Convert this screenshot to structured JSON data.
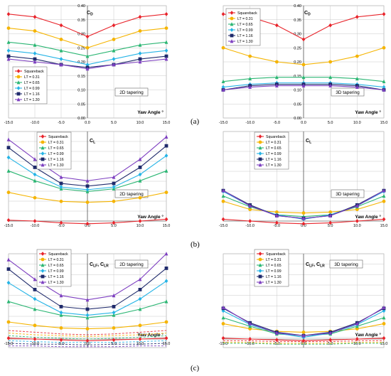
{
  "row_labels": [
    "(a)",
    "(b)",
    "(c)"
  ],
  "legend_labels": [
    "Squareback",
    "LT = 0.31",
    "LT = 0.65",
    "LT = 0.99",
    "LT = 1.16",
    "LT = 1.30"
  ],
  "colors": [
    "#e8242b",
    "#f5b400",
    "#2bb673",
    "#26b4e6",
    "#1f2a6b",
    "#7d3fc0"
  ],
  "chart_data": [
    {
      "type": "line",
      "id": "a-2d",
      "tag": "2D tapering",
      "coef_label": "C_D",
      "xlabel": "Yaw Angle °",
      "x": [
        -15,
        -10,
        -5,
        0,
        5,
        10,
        15
      ],
      "xticks": [
        "-15.0",
        "-10.0",
        "-5.0",
        "0.0",
        "5.0",
        "10.0",
        "15.0"
      ],
      "ylim": [
        0,
        0.4
      ],
      "yticks": [
        "0.00",
        "0.05",
        "0.10",
        "0.15",
        "0.20",
        "0.25",
        "0.30",
        "0.35",
        "0.40"
      ],
      "grid": true,
      "legend": "bottom-left",
      "series": [
        {
          "name": "Squareback",
          "values": [
            0.37,
            0.36,
            0.33,
            0.29,
            0.33,
            0.36,
            0.37
          ]
        },
        {
          "name": "LT = 0.31",
          "values": [
            0.32,
            0.31,
            0.28,
            0.25,
            0.28,
            0.31,
            0.32
          ]
        },
        {
          "name": "LT = 0.65",
          "values": [
            0.27,
            0.26,
            0.24,
            0.22,
            0.24,
            0.26,
            0.27
          ]
        },
        {
          "name": "LT = 0.99",
          "values": [
            0.24,
            0.23,
            0.21,
            0.19,
            0.21,
            0.23,
            0.24
          ]
        },
        {
          "name": "LT = 1.16",
          "values": [
            0.22,
            0.21,
            0.19,
            0.18,
            0.19,
            0.21,
            0.22
          ]
        },
        {
          "name": "LT = 1.30",
          "values": [
            0.21,
            0.2,
            0.19,
            0.175,
            0.19,
            0.2,
            0.21
          ]
        }
      ]
    },
    {
      "type": "line",
      "id": "a-3d",
      "tag": "3D tapering",
      "coef_label": "C_D",
      "xlabel": "Yaw Angle °",
      "x": [
        -15,
        -10,
        -5,
        0,
        5,
        10,
        15
      ],
      "xticks": [
        "-15.0",
        "-10.0",
        "-5.0",
        "0.0",
        "5.0",
        "10.0",
        "15.0"
      ],
      "ylim": [
        0,
        0.4
      ],
      "yticks": [
        "0.00",
        "0.05",
        "0.10",
        "0.15",
        "0.20",
        "0.25",
        "0.30",
        "0.35",
        "0.40"
      ],
      "grid": true,
      "legend": "top-left",
      "series": [
        {
          "name": "Squareback",
          "values": [
            0.37,
            0.36,
            0.33,
            0.28,
            0.33,
            0.36,
            0.37
          ]
        },
        {
          "name": "LT = 0.31",
          "values": [
            0.25,
            0.22,
            0.2,
            0.19,
            0.2,
            0.22,
            0.25
          ]
        },
        {
          "name": "LT = 0.65",
          "values": [
            0.13,
            0.14,
            0.145,
            0.145,
            0.145,
            0.14,
            0.13
          ]
        },
        {
          "name": "LT = 0.99",
          "values": [
            0.11,
            0.12,
            0.125,
            0.125,
            0.125,
            0.12,
            0.11
          ]
        },
        {
          "name": "LT = 1.16",
          "values": [
            0.1,
            0.115,
            0.12,
            0.12,
            0.12,
            0.115,
            0.1
          ]
        },
        {
          "name": "LT = 1.30",
          "values": [
            0.1,
            0.11,
            0.115,
            0.115,
            0.115,
            0.11,
            0.1
          ]
        }
      ]
    },
    {
      "type": "line",
      "id": "b-2d",
      "tag": "2D tapering",
      "coef_label": "C_L",
      "xlabel": "Yaw Angle °",
      "x": [
        -15,
        -10,
        -5,
        0,
        5,
        10,
        15
      ],
      "xticks": [
        "-15.0",
        "-10.0",
        "-5.0",
        "0.0",
        "5.0",
        "10.0",
        "15.0"
      ],
      "ylim": [
        0,
        1
      ],
      "yticks": [],
      "grid": true,
      "legend": "top-left",
      "series": [
        {
          "name": "Squareback",
          "values": [
            0.01,
            0.0,
            -0.02,
            -0.03,
            -0.02,
            0.0,
            0.02
          ]
        },
        {
          "name": "LT = 0.31",
          "values": [
            0.32,
            0.26,
            0.22,
            0.21,
            0.22,
            0.26,
            0.32
          ]
        },
        {
          "name": "LT = 0.65",
          "values": [
            0.56,
            0.45,
            0.36,
            0.33,
            0.36,
            0.45,
            0.56
          ]
        },
        {
          "name": "LT = 0.99",
          "values": [
            0.71,
            0.52,
            0.38,
            0.35,
            0.38,
            0.52,
            0.73
          ]
        },
        {
          "name": "LT = 1.16",
          "values": [
            0.82,
            0.6,
            0.42,
            0.39,
            0.42,
            0.6,
            0.84
          ]
        },
        {
          "name": "LT = 1.30",
          "values": [
            0.91,
            0.69,
            0.49,
            0.45,
            0.49,
            0.69,
            0.94
          ]
        }
      ]
    },
    {
      "type": "line",
      "id": "b-3d",
      "tag": "3D tapering",
      "coef_label": "C_L",
      "xlabel": "Yaw Angle °",
      "x": [
        -15,
        -10,
        -5,
        0,
        5,
        10,
        15
      ],
      "xticks": [
        "-15.0",
        "-10.0",
        "-5.0",
        "0.0",
        "5.0",
        "10.0",
        "15.0"
      ],
      "ylim": [
        0,
        1
      ],
      "yticks": [],
      "grid": true,
      "legend": "top-center",
      "series": [
        {
          "name": "Squareback",
          "values": [
            0.02,
            0.0,
            -0.02,
            -0.03,
            -0.02,
            0.0,
            0.02
          ]
        },
        {
          "name": "LT = 0.31",
          "values": [
            0.22,
            0.13,
            0.1,
            0.09,
            0.1,
            0.13,
            0.22
          ]
        },
        {
          "name": "LT = 0.65",
          "values": [
            0.28,
            0.16,
            0.07,
            0.05,
            0.07,
            0.16,
            0.28
          ]
        },
        {
          "name": "LT = 0.99",
          "values": [
            0.33,
            0.17,
            0.07,
            0.02,
            0.07,
            0.17,
            0.33
          ]
        },
        {
          "name": "LT = 1.16",
          "values": [
            0.34,
            0.18,
            0.06,
            0.03,
            0.06,
            0.18,
            0.34
          ]
        },
        {
          "name": "LT = 1.30",
          "values": [
            0.34,
            0.17,
            0.06,
            0.03,
            0.06,
            0.17,
            0.34
          ]
        }
      ]
    },
    {
      "type": "line",
      "id": "c-2d",
      "tag": "2D tapering",
      "coef_label": "C_LF, C_LR",
      "xlabel": "Yaw Angle °",
      "x": [
        -15,
        -10,
        -5,
        0,
        5,
        10,
        15
      ],
      "xticks": [
        "-15.0",
        "-10.0",
        "-5.0",
        "0.0",
        "5.0",
        "10.0",
        "15.0"
      ],
      "ylim": [
        -0.1,
        1
      ],
      "yticks": [],
      "grid": true,
      "legend": "top-left",
      "series": [
        {
          "name": "Squareback",
          "values": [
            0.01,
            0.0,
            -0.01,
            -0.02,
            -0.01,
            0.0,
            0.01
          ]
        },
        {
          "name": "LT = 0.31",
          "values": [
            0.2,
            0.16,
            0.13,
            0.12,
            0.13,
            0.16,
            0.2
          ]
        },
        {
          "name": "LT = 0.65",
          "values": [
            0.44,
            0.35,
            0.28,
            0.25,
            0.28,
            0.35,
            0.44
          ]
        },
        {
          "name": "LT = 0.99",
          "values": [
            0.66,
            0.47,
            0.31,
            0.28,
            0.31,
            0.47,
            0.68
          ]
        },
        {
          "name": "LT = 1.16",
          "values": [
            0.82,
            0.58,
            0.38,
            0.35,
            0.38,
            0.58,
            0.83
          ]
        },
        {
          "name": "LT = 1.30",
          "values": [
            0.93,
            0.7,
            0.51,
            0.46,
            0.51,
            0.7,
            1.0
          ]
        }
      ],
      "dashed_series": [
        {
          "values": [
            0.1,
            0.08,
            0.06,
            0.05,
            0.06,
            0.08,
            0.1
          ]
        },
        {
          "values": [
            0.07,
            0.05,
            0.04,
            0.03,
            0.04,
            0.05,
            0.07
          ]
        },
        {
          "values": [
            0.04,
            0.02,
            0.01,
            0.0,
            0.01,
            0.02,
            0.04
          ]
        },
        {
          "values": [
            -0.02,
            -0.03,
            -0.04,
            -0.04,
            -0.04,
            -0.03,
            -0.02
          ]
        },
        {
          "values": [
            -0.05,
            -0.06,
            -0.06,
            -0.07,
            -0.06,
            -0.06,
            -0.05
          ]
        },
        {
          "values": [
            -0.08,
            -0.08,
            -0.09,
            -0.09,
            -0.09,
            -0.08,
            -0.08
          ]
        }
      ]
    },
    {
      "type": "line",
      "id": "c-3d",
      "tag": "3D tapering",
      "coef_label": "C_LF, C_LR",
      "xlabel": "Yaw Angle °",
      "x": [
        -15,
        -10,
        -5,
        0,
        5,
        10,
        15
      ],
      "xticks": [
        "-15.0",
        "-10.0",
        "-5.0",
        "0.0",
        "5.0",
        "10.0",
        "15.0"
      ],
      "ylim": [
        -0.1,
        1
      ],
      "yticks": [],
      "grid": true,
      "legend": "top-left",
      "series": [
        {
          "name": "Squareback",
          "values": [
            0.01,
            0.0,
            -0.01,
            -0.02,
            -0.01,
            0.0,
            0.01
          ]
        },
        {
          "name": "LT = 0.31",
          "values": [
            0.18,
            0.12,
            0.09,
            0.08,
            0.09,
            0.12,
            0.18
          ]
        },
        {
          "name": "LT = 0.65",
          "values": [
            0.25,
            0.15,
            0.06,
            0.04,
            0.06,
            0.15,
            0.25
          ]
        },
        {
          "name": "LT = 0.99",
          "values": [
            0.33,
            0.17,
            0.07,
            0.02,
            0.07,
            0.17,
            0.33
          ]
        },
        {
          "name": "LT = 1.16",
          "values": [
            0.36,
            0.19,
            0.08,
            0.04,
            0.08,
            0.19,
            0.36
          ]
        },
        {
          "name": "LT = 1.30",
          "values": [
            0.37,
            0.18,
            0.07,
            0.04,
            0.07,
            0.18,
            0.37
          ]
        }
      ],
      "dashed_series": [
        {
          "values": [
            -0.02,
            -0.02,
            -0.03,
            -0.03,
            -0.03,
            -0.02,
            -0.02
          ]
        },
        {
          "values": [
            -0.04,
            -0.04,
            -0.05,
            -0.05,
            -0.05,
            -0.04,
            -0.04
          ]
        },
        {
          "values": [
            -0.05,
            -0.05,
            -0.06,
            -0.06,
            -0.06,
            -0.05,
            -0.05
          ]
        }
      ]
    }
  ]
}
